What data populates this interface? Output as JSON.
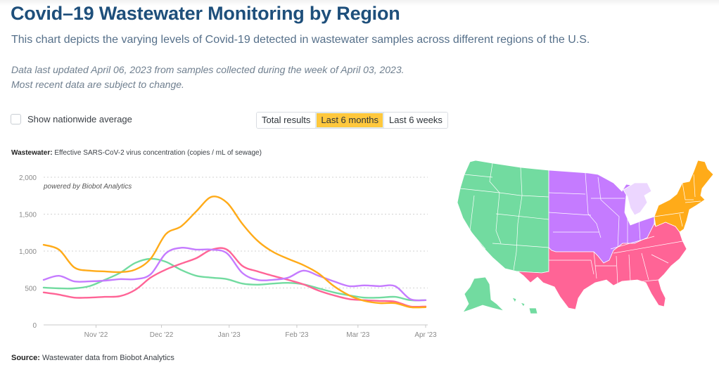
{
  "header": {
    "title": "Covid–19 Wastewater Monitoring by Region",
    "subtitle": "This chart depicts the varying levels of Covid-19 detected in wastewater samples across different regions of the U.S.",
    "updated_line1": "Data last updated April 06, 2023 from samples collected during the week of April 03, 2023.",
    "updated_line2": "Most recent data are subject to change."
  },
  "controls": {
    "nationwide_checkbox_label": "Show nationwide average",
    "nationwide_checked": false,
    "range_buttons": [
      {
        "label": "Total results",
        "active": false
      },
      {
        "label": "Last 6 months",
        "active": true
      },
      {
        "label": "Last 6 weeks",
        "active": false
      }
    ]
  },
  "caption": {
    "bold": "Wastewater:",
    "text": " Effective SARS-CoV-2 virus concentration (copies / mL of sewage)"
  },
  "source": {
    "bold": "Source:",
    "text": " Wastewater data from Biobot Analytics"
  },
  "colors": {
    "northeast": "#ffab19",
    "midwest": "#c57bff",
    "west": "#72dba0",
    "south": "#ff6496",
    "michigan_light": "#ecd6ff",
    "accent_button": "#ffc83d",
    "title": "#1e4f7b"
  },
  "chart_data": {
    "type": "line",
    "title": "",
    "watermark": "powered by Biobot Analytics",
    "xlabel": "",
    "ylabel": "Effective SARS-CoV-2 virus concentration (copies / mL of sewage)",
    "ylim": [
      0,
      2000
    ],
    "yticks": [
      0,
      500,
      1000,
      1500,
      2000
    ],
    "ytick_labels": [
      "0",
      "500",
      "1,000",
      "1,500",
      "2,000"
    ],
    "x_start": "2022-10-08",
    "x_step_days": 7,
    "xticks": [
      {
        "label": "Nov '22",
        "date": "2022-11-01"
      },
      {
        "label": "Dec '22",
        "date": "2022-12-01"
      },
      {
        "label": "Jan '23",
        "date": "2023-01-01"
      },
      {
        "label": "Feb '23",
        "date": "2023-02-01"
      },
      {
        "label": "Mar '23",
        "date": "2023-03-01"
      },
      {
        "label": "Apr '23",
        "date": "2023-04-01"
      }
    ],
    "grid": true,
    "legend": "none (regions identified by map colors)",
    "series": [
      {
        "name": "Northeast",
        "color": "#ffab19",
        "values": [
          1085,
          1020,
          780,
          735,
          725,
          715,
          750,
          895,
          1230,
          1335,
          1540,
          1735,
          1655,
          1370,
          1140,
          990,
          895,
          810,
          695,
          525,
          400,
          325,
          295,
          295,
          240,
          240
        ]
      },
      {
        "name": "Midwest",
        "color": "#c57bff",
        "values": [
          610,
          665,
          590,
          590,
          600,
          620,
          620,
          685,
          970,
          1045,
          1020,
          1020,
          970,
          705,
          610,
          610,
          640,
          735,
          665,
          590,
          525,
          535,
          525,
          525,
          350,
          335
        ]
      },
      {
        "name": "West",
        "color": "#72dba0",
        "values": [
          505,
          495,
          495,
          525,
          610,
          705,
          840,
          895,
          855,
          745,
          665,
          640,
          620,
          560,
          545,
          560,
          570,
          550,
          495,
          440,
          400,
          370,
          370,
          380,
          335,
          335
        ]
      },
      {
        "name": "South",
        "color": "#ff6496",
        "values": [
          440,
          410,
          370,
          370,
          380,
          390,
          475,
          640,
          750,
          830,
          905,
          1020,
          1020,
          800,
          725,
          665,
          610,
          550,
          465,
          400,
          350,
          335,
          325,
          315,
          250,
          250
        ]
      }
    ]
  }
}
